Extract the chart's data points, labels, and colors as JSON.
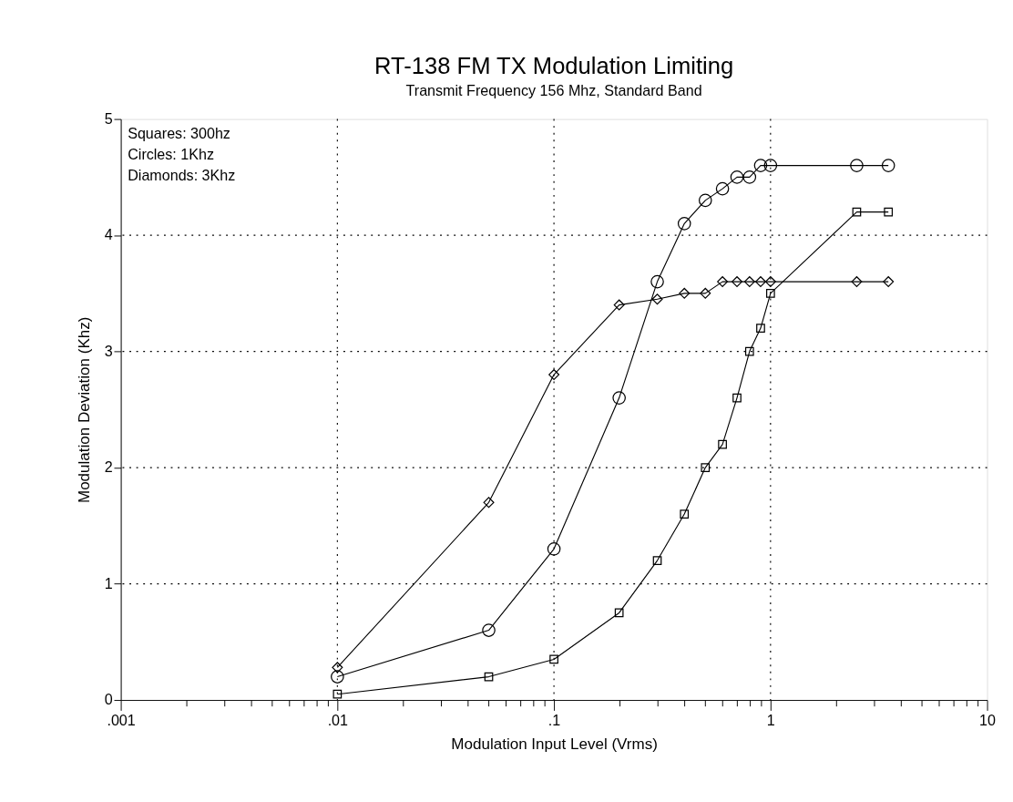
{
  "chart_data": {
    "type": "line",
    "title": "RT-138 FM TX Modulation Limiting",
    "subtitle": "Transmit Frequency 156 Mhz, Standard Band",
    "xlabel": "Modulation Input Level (Vrms)",
    "ylabel": "Modulation Deviation (Khz)",
    "x": [
      0.01,
      0.05,
      0.1,
      0.2,
      0.3,
      0.4,
      0.5,
      0.6,
      0.7,
      0.8,
      0.9,
      1,
      2.5,
      3.5
    ],
    "series": [
      {
        "color": "#000000",
        "marker": "square",
        "values": [
          0.05,
          0.2,
          0.35,
          0.75,
          1.2,
          1.6,
          2.0,
          2.2,
          2.6,
          3.0,
          3.2,
          3.5,
          4.2,
          4.2
        ]
      },
      {
        "color": "#000000",
        "marker": "circle",
        "values": [
          0.2,
          0.6,
          1.3,
          2.6,
          3.6,
          4.1,
          4.3,
          4.4,
          4.5,
          4.5,
          4.6,
          4.6,
          4.6,
          4.6
        ]
      },
      {
        "color": "#000000",
        "marker": "diamond",
        "values": [
          0.28,
          1.7,
          2.8,
          3.4,
          3.45,
          3.5,
          3.5,
          3.6,
          3.6,
          3.6,
          3.6,
          3.6,
          3.6,
          3.6
        ]
      }
    ],
    "log": "x",
    "xlim": [
      0.001,
      10
    ],
    "ylim": [
      0,
      5
    ],
    "xticks": [
      {
        "value": 0.001,
        "label": ".001"
      },
      {
        "value": 0.002,
        "label": null
      },
      {
        "value": 0.003,
        "label": null
      },
      {
        "value": 0.004,
        "label": null
      },
      {
        "value": 0.005,
        "label": null
      },
      {
        "value": 0.006,
        "label": null
      },
      {
        "value": 0.007,
        "label": null
      },
      {
        "value": 0.008,
        "label": null
      },
      {
        "value": 0.009,
        "label": null
      },
      {
        "value": 0.01,
        "label": ".01"
      },
      {
        "value": 0.02,
        "label": null
      },
      {
        "value": 0.03,
        "label": null
      },
      {
        "value": 0.04,
        "label": null
      },
      {
        "value": 0.05,
        "label": null
      },
      {
        "value": 0.06,
        "label": null
      },
      {
        "value": 0.07,
        "label": null
      },
      {
        "value": 0.08,
        "label": null
      },
      {
        "value": 0.09,
        "label": null
      },
      {
        "value": 0.1,
        "label": ".1"
      },
      {
        "value": 0.2,
        "label": null
      },
      {
        "value": 0.3,
        "label": null
      },
      {
        "value": 0.4,
        "label": null
      },
      {
        "value": 0.5,
        "label": null
      },
      {
        "value": 0.6,
        "label": null
      },
      {
        "value": 0.7,
        "label": null
      },
      {
        "value": 0.8,
        "label": null
      },
      {
        "value": 0.9,
        "label": null
      },
      {
        "value": 1,
        "label": "1"
      },
      {
        "value": 2,
        "label": null
      },
      {
        "value": 3,
        "label": null
      },
      {
        "value": 4,
        "label": null
      },
      {
        "value": 5,
        "label": null
      },
      {
        "value": 6,
        "label": null
      },
      {
        "value": 7,
        "label": null
      },
      {
        "value": 8,
        "label": null
      },
      {
        "value": 9,
        "label": null
      },
      {
        "value": 10,
        "label": "10"
      }
    ],
    "yticks": [
      0,
      1,
      2,
      3,
      4,
      5
    ],
    "grid": true,
    "line_style": "solid",
    "annotations": [
      "Squares:  300hz",
      "Circles:  1Khz",
      "Diamonds:  3Khz"
    ]
  }
}
